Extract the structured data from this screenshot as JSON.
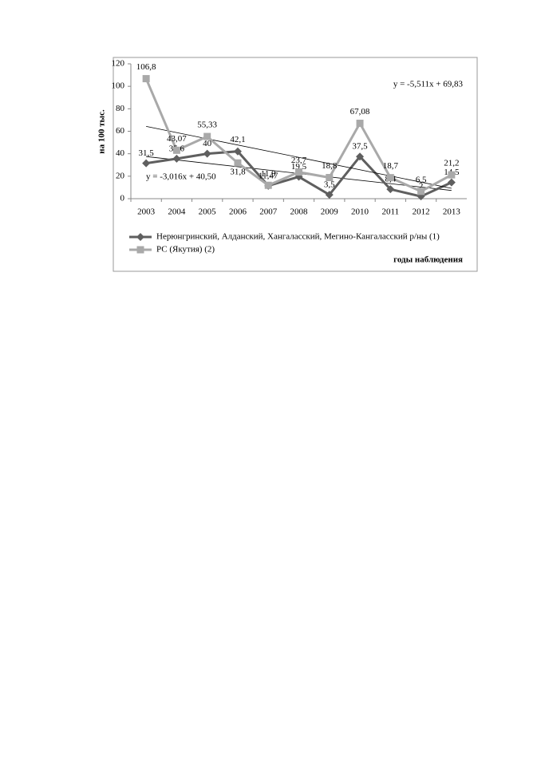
{
  "chart_data": {
    "type": "line",
    "y_label": "на 100 тыс.",
    "x_label": "годы наблюдения",
    "categories": [
      "2003",
      "2004",
      "2005",
      "2006",
      "2007",
      "2008",
      "2009",
      "2010",
      "2011",
      "2012",
      "2013"
    ],
    "series": [
      {
        "name": "Нерюнгринский, Алданский, Хангаласский, Мегино-Кангаласский р/ны (1)",
        "color": "#5f5f5f",
        "marker": "diamond",
        "values": [
          31.5,
          35.6,
          40,
          42.1,
          11.47,
          19.5,
          3.5,
          37.5,
          8.4,
          2,
          14.5
        ],
        "value_labels": [
          "31,5",
          "35,6",
          "40",
          "42,1",
          "11,47",
          "19,5",
          "3,5",
          "37,5",
          "8,4",
          "2",
          "14,5"
        ],
        "trend": {
          "slope": {
            "value": -3.016,
            "label": "-3,016"
          },
          "intercept": {
            "value": 40.5,
            "label": "40,50"
          },
          "label": "y = -3,016x + 40,50"
        }
      },
      {
        "name": "РС (Якутия) (2)",
        "color": "#a9a9a9",
        "marker": "square",
        "values": [
          106.8,
          43.07,
          55.33,
          31.8,
          11.9,
          23.7,
          18.8,
          67.08,
          18.7,
          6.5,
          21.2
        ],
        "value_labels": [
          "106,8",
          "43,07",
          "55,33",
          "31,8",
          "11,9",
          "23,7",
          "18,8",
          "67,08",
          "18,7",
          "6,5",
          "21,2"
        ],
        "trend": {
          "slope": {
            "value": -5.511,
            "label": "-5,511"
          },
          "intercept": {
            "value": 69.83,
            "label": "69,83"
          },
          "label": "y = -5,511x + 69,83"
        }
      }
    ],
    "ylim": [
      0,
      120
    ],
    "yticks": [
      0,
      20,
      40,
      60,
      80,
      100,
      120
    ]
  }
}
